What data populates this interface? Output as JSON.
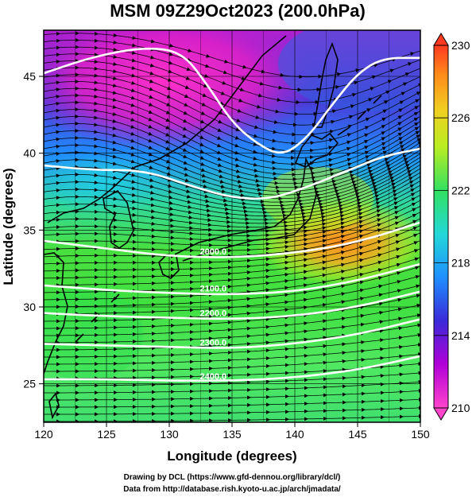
{
  "title": "MSM 09Z29Oct2023 (200.0hPa)",
  "x_axis": {
    "label": "Longitude (degrees)",
    "ticks": [
      "120",
      "125",
      "130",
      "135",
      "140",
      "145",
      "150"
    ],
    "range": [
      120,
      150
    ]
  },
  "y_axis": {
    "label": "Latitude  (degrees)",
    "ticks": [
      "25",
      "30",
      "35",
      "40",
      "45"
    ],
    "range": [
      22.5,
      48
    ]
  },
  "colorbar": {
    "ticks": [
      "210",
      "214",
      "218",
      "222",
      "226",
      "230"
    ],
    "range": [
      210,
      230
    ],
    "colors": [
      "#ff44cc",
      "#b200d8",
      "#3a2ad8",
      "#1f8fff",
      "#22d8d8",
      "#33e060",
      "#b8ee22",
      "#f0d020",
      "#ff8a1a",
      "#ff3a20"
    ]
  },
  "credits": {
    "line1": "Drawing by DCL (https://www.gfd-dennou.org/library/dcl/)",
    "line2": "Data from http://database.rish.kyoto-u.ac.jp/arch/jmadata/"
  },
  "chart_data": {
    "type": "heatmap",
    "title": "MSM 09Z29Oct2023 (200.0hPa)",
    "xlabel": "Longitude (degrees)",
    "ylabel": "Latitude  (degrees)",
    "xlim": [
      120,
      150
    ],
    "ylim": [
      22.5,
      48
    ],
    "color_range": [
      210,
      230
    ],
    "overlays": [
      "wind streamlines",
      "geopotential height contours",
      "coastlines",
      "graticule"
    ],
    "contours": [
      {
        "label": "",
        "points": [
          [
            120,
            45.2
          ],
          [
            124,
            46.3
          ],
          [
            128,
            46.9
          ],
          [
            131,
            46.6
          ],
          [
            133,
            44.5
          ],
          [
            135,
            42.0
          ],
          [
            137,
            40.6
          ],
          [
            139,
            39.8
          ],
          [
            141,
            41.0
          ],
          [
            143,
            43.2
          ],
          [
            145,
            45.2
          ],
          [
            147,
            46.2
          ],
          [
            150,
            46.2
          ]
        ]
      },
      {
        "label": "",
        "points": [
          [
            120,
            39.2
          ],
          [
            124,
            38.9
          ],
          [
            128,
            38.9
          ],
          [
            132,
            37.8
          ],
          [
            135,
            37.1
          ],
          [
            138,
            37.0
          ],
          [
            141,
            37.8
          ],
          [
            144,
            38.8
          ],
          [
            147,
            39.8
          ],
          [
            150,
            40.3
          ]
        ]
      },
      {
        "label": "2000.0",
        "points": [
          [
            120,
            34.3
          ],
          [
            125,
            33.8
          ],
          [
            130,
            33.3
          ],
          [
            135,
            33.2
          ],
          [
            140,
            33.5
          ],
          [
            145,
            34.2
          ],
          [
            150,
            35.5
          ]
        ]
      },
      {
        "label": "2100.0",
        "points": [
          [
            120,
            31.4
          ],
          [
            125,
            31.1
          ],
          [
            130,
            30.9
          ],
          [
            135,
            30.8
          ],
          [
            140,
            31.0
          ],
          [
            145,
            31.7
          ],
          [
            150,
            32.8
          ]
        ]
      },
      {
        "label": "2200.0",
        "points": [
          [
            120,
            29.6
          ],
          [
            125,
            29.4
          ],
          [
            130,
            29.3
          ],
          [
            135,
            29.2
          ],
          [
            140,
            29.4
          ],
          [
            145,
            30.0
          ],
          [
            150,
            31.0
          ]
        ]
      },
      {
        "label": "2300.0",
        "points": [
          [
            120,
            27.6
          ],
          [
            125,
            27.5
          ],
          [
            130,
            27.4
          ],
          [
            135,
            27.3
          ],
          [
            140,
            27.6
          ],
          [
            145,
            28.2
          ],
          [
            150,
            29.2
          ]
        ]
      },
      {
        "label": "2400.0",
        "points": [
          [
            120,
            25.3
          ],
          [
            125,
            25.3
          ],
          [
            130,
            25.2
          ],
          [
            135,
            25.2
          ],
          [
            140,
            25.4
          ],
          [
            145,
            25.9
          ],
          [
            150,
            26.8
          ]
        ]
      }
    ]
  }
}
